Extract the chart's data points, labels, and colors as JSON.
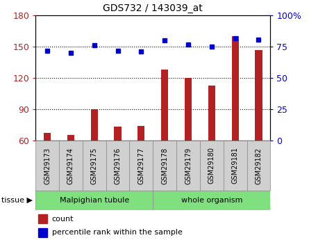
{
  "title": "GDS732 / 143039_at",
  "samples": [
    "GSM29173",
    "GSM29174",
    "GSM29175",
    "GSM29176",
    "GSM29177",
    "GSM29178",
    "GSM29179",
    "GSM29180",
    "GSM29181",
    "GSM29182"
  ],
  "counts": [
    67,
    65,
    90,
    73,
    74,
    128,
    120,
    113,
    160,
    147
  ],
  "percentiles": [
    72,
    70,
    76,
    72,
    71,
    80,
    77,
    75,
    82,
    81
  ],
  "left_ylim": [
    60,
    180
  ],
  "right_ylim": [
    0,
    100
  ],
  "left_yticks": [
    60,
    90,
    120,
    150,
    180
  ],
  "right_yticks": [
    0,
    25,
    50,
    75,
    100
  ],
  "right_yticklabels": [
    "0",
    "25",
    "50",
    "75",
    "100%"
  ],
  "bar_color": "#b22222",
  "dot_color": "#0000cc",
  "plot_bg": "white",
  "legend_count_label": "count",
  "legend_pct_label": "percentile rank within the sample",
  "malp_label": "Malpighian tubule",
  "whole_label": "whole organism",
  "tissue_label": "tissue",
  "green_color": "#80e080",
  "gray_color": "#d0d0d0"
}
